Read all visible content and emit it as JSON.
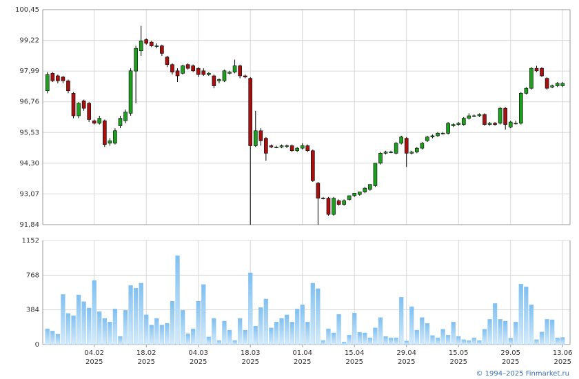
{
  "chart_data": {
    "type": "candlestick",
    "up_color": "#1e9e1e",
    "down_color": "#a51010",
    "wick_color": "#000000",
    "ylim": [
      91.84,
      100.45
    ],
    "yticks": [
      {
        "value": 91.84,
        "label": "91,84"
      },
      {
        "value": 93.07,
        "label": "93,07"
      },
      {
        "value": 94.3,
        "label": "94,30"
      },
      {
        "value": 95.53,
        "label": "95,53"
      },
      {
        "value": 96.76,
        "label": "96,76"
      },
      {
        "value": 97.99,
        "label": "97,99"
      },
      {
        "value": 99.22,
        "label": "99,22"
      },
      {
        "value": 100.45,
        "label": "100,45"
      }
    ],
    "xticks": [
      {
        "value": 9,
        "label": "04.02"
      },
      {
        "value": 19,
        "label": "18.02"
      },
      {
        "value": 29,
        "label": "04.03"
      },
      {
        "value": 39,
        "label": "18.03"
      },
      {
        "value": 49,
        "label": "01.04"
      },
      {
        "value": 59,
        "label": "15.04"
      },
      {
        "value": 69,
        "label": "29.04"
      },
      {
        "value": 79,
        "label": "15.05"
      },
      {
        "value": 89,
        "label": "29.05"
      },
      {
        "value": 99,
        "label": "13.06"
      }
    ],
    "year_label": "2025",
    "grid": true,
    "ohlc": [
      [
        97.2,
        97.95,
        97.1,
        97.85
      ],
      [
        97.9,
        97.95,
        97.55,
        97.6
      ],
      [
        97.8,
        97.85,
        97.5,
        97.6
      ],
      [
        97.75,
        97.8,
        97.5,
        97.6
      ],
      [
        97.6,
        97.65,
        97.1,
        97.2
      ],
      [
        97.1,
        97.15,
        96.1,
        96.2
      ],
      [
        96.2,
        96.75,
        96.1,
        96.7
      ],
      [
        96.8,
        96.85,
        96.4,
        96.5
      ],
      [
        96.7,
        96.75,
        95.95,
        96.05
      ],
      [
        96.0,
        96.05,
        95.85,
        95.9
      ],
      [
        95.9,
        96.2,
        95.85,
        96.1
      ],
      [
        96.0,
        96.05,
        94.95,
        95.05
      ],
      [
        95.1,
        95.3,
        95.0,
        95.2
      ],
      [
        95.1,
        95.7,
        95.05,
        95.6
      ],
      [
        95.8,
        96.2,
        95.7,
        96.1
      ],
      [
        96.0,
        96.45,
        95.9,
        96.35
      ],
      [
        96.3,
        98.1,
        96.2,
        98.0
      ],
      [
        97.99,
        99.0,
        96.7,
        98.9
      ],
      [
        98.8,
        99.8,
        98.6,
        99.2
      ],
      [
        99.25,
        99.3,
        99.05,
        99.1
      ],
      [
        99.15,
        99.2,
        98.95,
        99.0
      ],
      [
        99.0,
        99.1,
        98.9,
        99.0
      ],
      [
        99.0,
        99.05,
        98.6,
        98.7
      ],
      [
        98.55,
        98.6,
        98.15,
        98.25
      ],
      [
        98.25,
        98.3,
        97.85,
        97.95
      ],
      [
        98.0,
        98.1,
        97.55,
        97.8
      ],
      [
        97.9,
        98.25,
        97.85,
        98.2
      ],
      [
        98.25,
        98.3,
        98.05,
        98.1
      ],
      [
        98.2,
        98.25,
        97.95,
        98.0
      ],
      [
        98.1,
        98.15,
        97.75,
        97.85
      ],
      [
        98.0,
        98.1,
        97.8,
        97.85
      ],
      [
        97.85,
        97.95,
        97.8,
        97.9
      ],
      [
        97.8,
        97.85,
        97.3,
        97.4
      ],
      [
        97.6,
        97.7,
        97.5,
        97.65
      ],
      [
        97.6,
        98.05,
        97.55,
        98.0
      ],
      [
        97.9,
        98.0,
        97.85,
        97.95
      ],
      [
        97.95,
        98.45,
        97.9,
        98.2
      ],
      [
        98.2,
        98.25,
        97.7,
        97.8
      ],
      [
        97.8,
        97.85,
        97.7,
        97.75
      ],
      [
        97.7,
        97.75,
        91.84,
        95.0
      ],
      [
        95.0,
        96.4,
        94.95,
        95.6
      ],
      [
        95.6,
        95.7,
        95.0,
        95.2
      ],
      [
        95.3,
        95.35,
        94.4,
        94.7
      ],
      [
        95.0,
        95.05,
        94.9,
        94.95
      ],
      [
        94.95,
        95.0,
        94.9,
        94.95
      ],
      [
        94.95,
        95.05,
        94.9,
        95.0
      ],
      [
        95.0,
        95.05,
        94.9,
        95.0
      ],
      [
        95.0,
        95.05,
        94.75,
        94.8
      ],
      [
        94.8,
        94.95,
        94.75,
        94.9
      ],
      [
        94.9,
        95.1,
        94.85,
        95.0
      ],
      [
        95.0,
        95.05,
        94.75,
        94.8
      ],
      [
        94.8,
        94.85,
        93.55,
        93.6
      ],
      [
        93.5,
        93.55,
        91.84,
        92.9
      ],
      [
        92.9,
        92.95,
        92.85,
        92.9
      ],
      [
        92.9,
        92.95,
        92.2,
        92.25
      ],
      [
        92.25,
        92.95,
        92.2,
        92.9
      ],
      [
        92.8,
        92.85,
        92.6,
        92.65
      ],
      [
        92.65,
        92.85,
        92.6,
        92.8
      ],
      [
        92.85,
        93.0,
        92.8,
        93.0
      ],
      [
        93.0,
        93.1,
        92.95,
        93.1
      ],
      [
        93.05,
        93.15,
        93.0,
        93.15
      ],
      [
        93.15,
        93.35,
        93.1,
        93.3
      ],
      [
        93.25,
        93.45,
        93.2,
        93.45
      ],
      [
        93.4,
        94.3,
        93.35,
        94.3
      ],
      [
        94.3,
        94.75,
        94.25,
        94.7
      ],
      [
        94.7,
        94.8,
        94.65,
        94.75
      ],
      [
        94.75,
        94.8,
        94.7,
        94.75
      ],
      [
        94.7,
        95.15,
        94.65,
        95.1
      ],
      [
        95.1,
        95.4,
        95.05,
        95.35
      ],
      [
        95.3,
        95.35,
        94.15,
        94.7
      ],
      [
        94.7,
        94.8,
        94.65,
        94.75
      ],
      [
        94.75,
        94.95,
        94.7,
        94.9
      ],
      [
        94.9,
        95.15,
        94.85,
        95.1
      ],
      [
        95.2,
        95.4,
        95.15,
        95.35
      ],
      [
        95.35,
        95.45,
        95.3,
        95.4
      ],
      [
        95.4,
        95.55,
        95.35,
        95.5
      ],
      [
        95.5,
        95.55,
        95.45,
        95.5
      ],
      [
        95.5,
        95.95,
        95.45,
        95.9
      ],
      [
        95.8,
        95.9,
        95.75,
        95.85
      ],
      [
        95.85,
        95.95,
        95.8,
        95.9
      ],
      [
        95.85,
        96.15,
        95.8,
        96.1
      ],
      [
        96.1,
        96.3,
        96.05,
        96.2
      ],
      [
        96.2,
        96.25,
        96.15,
        96.2
      ],
      [
        96.2,
        96.3,
        96.15,
        96.25
      ],
      [
        96.25,
        96.3,
        95.8,
        95.85
      ],
      [
        95.85,
        95.95,
        95.8,
        95.9
      ],
      [
        95.9,
        95.95,
        95.8,
        95.85
      ],
      [
        95.9,
        96.55,
        95.85,
        96.5
      ],
      [
        96.5,
        96.55,
        95.65,
        95.85
      ],
      [
        95.75,
        96.0,
        95.7,
        95.95
      ],
      [
        95.9,
        96.0,
        95.85,
        95.9
      ],
      [
        95.9,
        97.15,
        95.85,
        97.1
      ],
      [
        97.1,
        97.35,
        97.05,
        97.3
      ],
      [
        97.3,
        98.15,
        97.25,
        98.1
      ],
      [
        98.1,
        98.2,
        97.95,
        98.0
      ],
      [
        98.1,
        98.15,
        97.75,
        97.8
      ],
      [
        97.7,
        97.75,
        97.25,
        97.3
      ],
      [
        97.35,
        97.45,
        97.3,
        97.4
      ],
      [
        97.4,
        97.55,
        97.35,
        97.5
      ],
      [
        97.4,
        97.55,
        97.35,
        97.5
      ]
    ],
    "volume": {
      "color": "#8ec8f2",
      "ylim": [
        0,
        1152
      ],
      "yticks": [
        0,
        384,
        768,
        1152
      ],
      "values": [
        175,
        150,
        115,
        555,
        345,
        320,
        550,
        475,
        405,
        710,
        365,
        290,
        250,
        395,
        90,
        380,
        655,
        625,
        680,
        330,
        215,
        290,
        215,
        235,
        480,
        985,
        380,
        120,
        175,
        480,
        665,
        85,
        290,
        45,
        260,
        160,
        45,
        290,
        160,
        795,
        205,
        410,
        505,
        185,
        250,
        290,
        330,
        250,
        395,
        440,
        250,
        680,
        620,
        45,
        175,
        130,
        335,
        30,
        105,
        350,
        135,
        130,
        75,
        185,
        300,
        90,
        75,
        75,
        525,
        40,
        420,
        160,
        300,
        235,
        100,
        75,
        170,
        105,
        250,
        90,
        55,
        45,
        75,
        45,
        170,
        280,
        455,
        280,
        260,
        70,
        250,
        670,
        640,
        440,
        55,
        140,
        280,
        275,
        75,
        80
      ]
    },
    "copyright": "© 1994–2025 Finmarket.ru"
  }
}
